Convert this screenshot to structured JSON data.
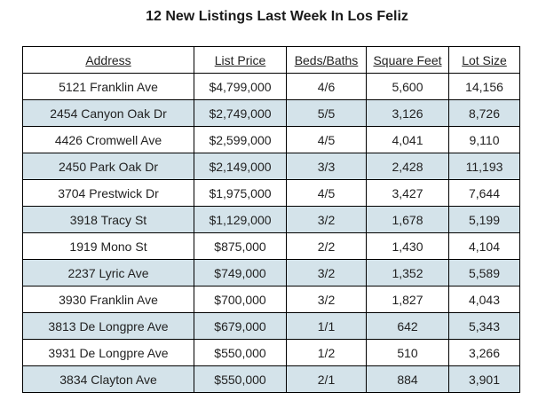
{
  "title": "12 New Listings Last Week In Los Feliz",
  "table": {
    "headers": [
      "Address",
      "List Price",
      "Beds/Baths",
      "Square Feet",
      "Lot Size"
    ],
    "rows": [
      [
        "5121 Franklin Ave",
        "$4,799,000",
        "4/6",
        "5,600",
        "14,156"
      ],
      [
        "2454 Canyon Oak Dr",
        "$2,749,000",
        "5/5",
        "3,126",
        "8,726"
      ],
      [
        "4426 Cromwell Ave",
        "$2,599,000",
        "4/5",
        "4,041",
        "9,110"
      ],
      [
        "2450 Park Oak Dr",
        "$2,149,000",
        "3/3",
        "2,428",
        "11,193"
      ],
      [
        "3704 Prestwick Dr",
        "$1,975,000",
        "4/5",
        "3,427",
        "7,644"
      ],
      [
        "3918 Tracy St",
        "$1,129,000",
        "3/2",
        "1,678",
        "5,199"
      ],
      [
        "1919 Mono St",
        "$875,000",
        "2/2",
        "1,430",
        "4,104"
      ],
      [
        "2237 Lyric Ave",
        "$749,000",
        "3/2",
        "1,352",
        "5,589"
      ],
      [
        "3930 Franklin Ave",
        "$700,000",
        "3/2",
        "1,827",
        "4,043"
      ],
      [
        "3813 De Longpre Ave",
        "$679,000",
        "1/1",
        "642",
        "5,343"
      ],
      [
        "3931 De Longpre Ave",
        "$550,000",
        "1/2",
        "510",
        "3,266"
      ],
      [
        "3834 Clayton Ave",
        "$550,000",
        "2/1",
        "884",
        "3,901"
      ]
    ]
  },
  "colors": {
    "stripe": "#d4e3ea",
    "border": "#000000"
  }
}
